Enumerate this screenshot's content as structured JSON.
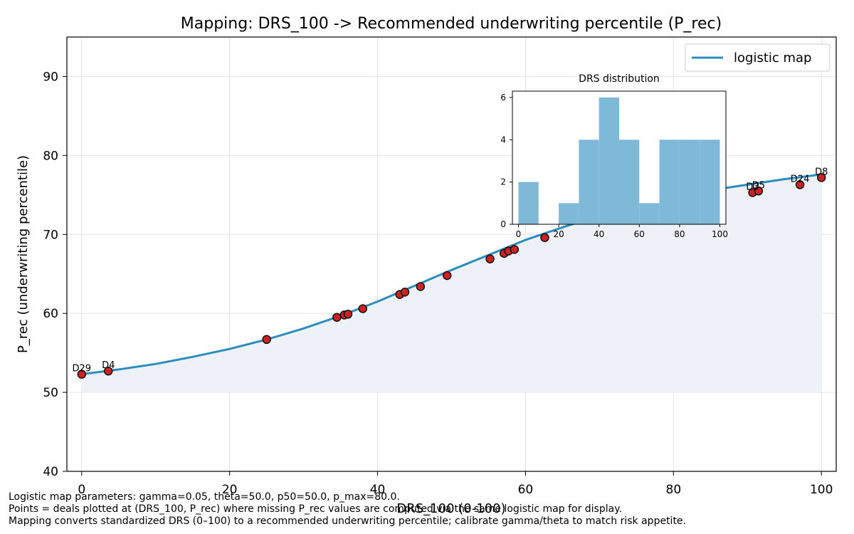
{
  "chart_data": {
    "type": "line",
    "title": "Mapping: DRS_100 -> Recommended underwriting percentile (P_rec)",
    "xlabel": "DRS_100 (0-100)",
    "ylabel": "P_rec (underwriting percentile)",
    "xlim": [
      -2,
      102
    ],
    "ylim": [
      40,
      95
    ],
    "xticks": [
      "0",
      "20",
      "40",
      "60",
      "80",
      "100"
    ],
    "yticks": [
      "40",
      "50",
      "60",
      "70",
      "80",
      "90"
    ],
    "grid": true,
    "legend": {
      "position": "top-right",
      "entries": [
        "logistic map"
      ]
    },
    "series": [
      {
        "name": "logistic map",
        "color": "#2b8cbe",
        "x": [
          0,
          5,
          10,
          15,
          20,
          25,
          30,
          35,
          40,
          45,
          50,
          55,
          60,
          65,
          70,
          75,
          80,
          85,
          90,
          95,
          100
        ],
        "y": [
          52.3,
          52.9,
          53.6,
          54.5,
          55.5,
          56.7,
          58.1,
          59.7,
          61.5,
          63.5,
          65.5,
          67.4,
          69.3,
          70.9,
          72.4,
          73.6,
          74.7,
          75.6,
          76.3,
          77.0,
          77.6
        ]
      }
    ],
    "fill": {
      "from": 50,
      "color": "#eef2f8"
    },
    "points": {
      "color": "#cc2222",
      "x": [
        0,
        3.6,
        25,
        34.5,
        35.5,
        36,
        38,
        43,
        43.7,
        45.8,
        49.4,
        55.2,
        57.1,
        57.7,
        58.5,
        62.6,
        90.7,
        91.5,
        97.1,
        100
      ],
      "y": [
        52.3,
        52.7,
        56.7,
        59.5,
        59.8,
        59.9,
        60.6,
        62.4,
        62.7,
        63.4,
        64.8,
        66.9,
        67.6,
        67.9,
        68.1,
        69.6,
        75.3,
        75.5,
        76.3,
        77.2
      ]
    },
    "point_labels": [
      {
        "text": "D29",
        "x": 0,
        "y": 52.3
      },
      {
        "text": "D4",
        "x": 3.6,
        "y": 52.7
      },
      {
        "text": "D3",
        "x": 90.7,
        "y": 75.3
      },
      {
        "text": "D5",
        "x": 91.5,
        "y": 75.5
      },
      {
        "text": "D24",
        "x": 97.1,
        "y": 76.3
      },
      {
        "text": "D8",
        "x": 100,
        "y": 77.2
      }
    ],
    "inset": {
      "type": "bar",
      "title": "DRS distribution",
      "color": "#7fb9d8",
      "bin_edges": [
        0,
        10,
        20,
        30,
        40,
        50,
        60,
        70,
        80,
        90,
        100
      ],
      "counts": [
        2,
        0,
        1,
        4,
        6,
        4,
        1,
        4,
        4,
        4
      ],
      "xlim": [
        -3,
        103
      ],
      "ylim": [
        0,
        6.3
      ],
      "xticks": [
        "0",
        "20",
        "40",
        "60",
        "80",
        "100"
      ],
      "yticks": [
        "0",
        "2",
        "4",
        "6"
      ]
    }
  },
  "footer": {
    "line1": "Logistic map parameters: gamma=0.05, theta=50.0, p50=50.0, p_max=80.0.",
    "line2": "Points = deals plotted at (DRS_100, P_rec) where missing P_rec values are computed via the same logistic map for display.",
    "line3": "Mapping converts standardized DRS (0–100) to a recommended underwriting percentile; calibrate gamma/theta to match risk appetite."
  }
}
